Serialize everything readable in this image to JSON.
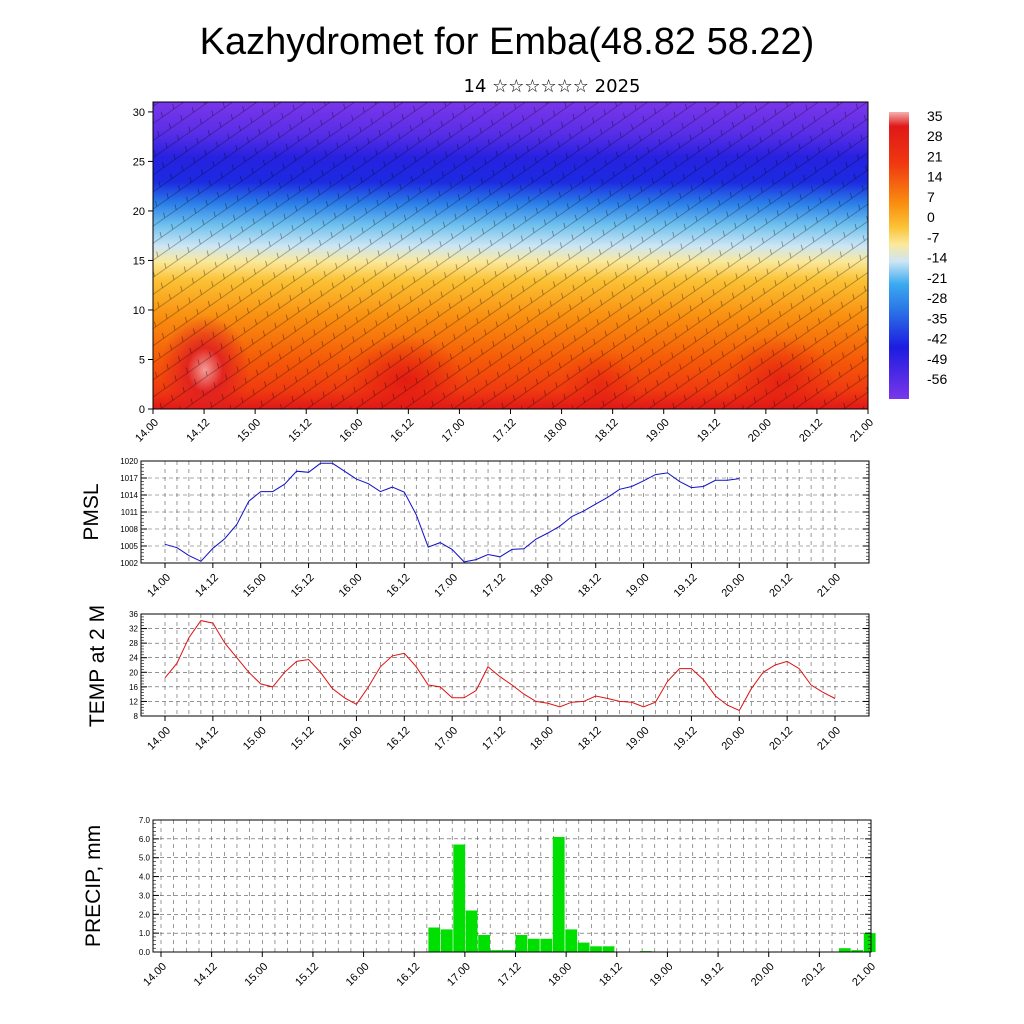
{
  "title": "Kazhydromet for Emba(48.82 58.22)",
  "subtitle": "14 ☆☆☆☆☆☆ 2025",
  "colors": {
    "pmsl_line": "#1010c8",
    "temp_line": "#e01010",
    "precip_bar": "#00e000"
  },
  "chart_data": [
    {
      "type": "heatmap",
      "name": "height-time cross section",
      "x_ticks": [
        "14.00",
        "14.12",
        "15.00",
        "15.12",
        "16.00",
        "16.12",
        "17.00",
        "17.12",
        "18.00",
        "18.12",
        "19.00",
        "19.12",
        "20.00",
        "20.12",
        "21.00"
      ],
      "y_ticks": [
        "0",
        "5",
        "10",
        "15",
        "20",
        "25",
        "30"
      ],
      "ylim": [
        0,
        31
      ],
      "colorbar_labels": [
        "35",
        "28",
        "21",
        "14",
        "7",
        "0",
        "-7",
        "-14",
        "-21",
        "-28",
        "-35",
        "-42",
        "-49",
        "-56"
      ],
      "overlay": "wind barbs"
    },
    {
      "type": "line",
      "ylabel": "PMSL",
      "x_ticks": [
        "14.00",
        "14.12",
        "15.00",
        "15.12",
        "16.00",
        "16.12",
        "17.00",
        "17.12",
        "18.00",
        "18.12",
        "19.00",
        "19.12",
        "20.00",
        "20.12",
        "21.00"
      ],
      "y_ticks": [
        "1002",
        "1005",
        "1008",
        "1011",
        "1014",
        "1017",
        "1020"
      ],
      "ylim": [
        1002,
        1020
      ],
      "step_hours": 3,
      "values": [
        1005.3,
        1004.7,
        1003.3,
        1002.3,
        1004.6,
        1006.3,
        1008.8,
        1012.9,
        1014.6,
        1014.6,
        1015.9,
        1018.2,
        1018.0,
        1019.6,
        1019.6,
        1018.2,
        1016.8,
        1016.0,
        1014.6,
        1015.4,
        1014.5,
        1010.5,
        1004.8,
        1005.6,
        1004.4,
        1002.2,
        1002.6,
        1003.5,
        1003.1,
        1004.4,
        1004.5,
        1006.2,
        1007.3,
        1008.5,
        1010.2,
        1011.2,
        1012.4,
        1013.6,
        1015.0,
        1015.5,
        1016.5,
        1017.6,
        1017.9,
        1016.4,
        1015.3,
        1015.5,
        1016.6,
        1016.6,
        1016.9
      ]
    },
    {
      "type": "line",
      "ylabel": "TEMP at 2 M",
      "x_ticks": [
        "14.00",
        "14.12",
        "15.00",
        "15.12",
        "16.00",
        "16.12",
        "17.00",
        "17.12",
        "18.00",
        "18.12",
        "19.00",
        "19.12",
        "20.00",
        "20.12",
        "21.00"
      ],
      "y_ticks": [
        "8",
        "12",
        "16",
        "20",
        "24",
        "28",
        "32",
        "36"
      ],
      "ylim": [
        8,
        36
      ],
      "step_hours": 3,
      "values": [
        18.5,
        22.5,
        29.5,
        34.2,
        33.5,
        28.0,
        24.0,
        20.0,
        16.8,
        16.0,
        20.0,
        23.0,
        23.5,
        20.0,
        15.5,
        13.0,
        11.2,
        16.0,
        21.5,
        24.5,
        25.2,
        21.5,
        16.5,
        16.0,
        13.0,
        13.0,
        15.0,
        21.5,
        18.8,
        16.5,
        14.0,
        12.0,
        11.5,
        10.5,
        11.8,
        12.0,
        13.5,
        12.8,
        12.0,
        11.8,
        10.5,
        11.8,
        17.5,
        21.0,
        21.0,
        18.0,
        13.5,
        11.0,
        9.5,
        15.5,
        20.0,
        22.0,
        23.0,
        21.0,
        16.5,
        14.5,
        12.8
      ]
    },
    {
      "type": "bar",
      "ylabel": "PRECIP, mm",
      "x_ticks": [
        "14.00",
        "14.12",
        "15.00",
        "15.12",
        "16.00",
        "16.12",
        "17.00",
        "17.12",
        "18.00",
        "18.12",
        "19.00",
        "19.12",
        "20.00",
        "20.12",
        "21.00"
      ],
      "y_ticks": [
        "0.0",
        "1.0",
        "2.0",
        "3.0",
        "4.0",
        "5.0",
        "6.0",
        "7.0"
      ],
      "ylim": [
        0,
        7
      ],
      "step_hours": 3,
      "values": [
        0,
        0,
        0,
        0,
        0.02,
        0,
        0,
        0,
        0,
        0,
        0.02,
        0,
        0,
        0,
        0,
        0,
        0,
        0,
        0,
        0,
        0,
        0,
        1.3,
        1.2,
        5.7,
        2.2,
        0.9,
        0.1,
        0.1,
        0.9,
        0.7,
        0.7,
        6.1,
        1.2,
        0.5,
        0.3,
        0.3,
        0,
        0,
        0.05,
        0,
        0,
        0,
        0,
        0,
        0,
        0,
        0,
        0,
        0,
        0,
        0,
        0,
        0,
        0,
        0.2,
        0.1,
        1.0
      ]
    }
  ]
}
